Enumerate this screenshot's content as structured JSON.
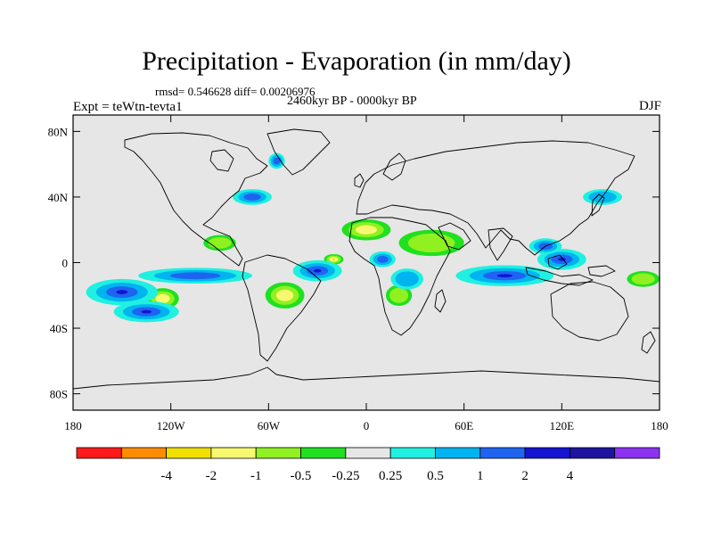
{
  "title": "Precipitation - Evaporation (in mm/day)",
  "stats_line": "rmsd= 0.546628 diff= 0.00206976",
  "period": "2460kyr BP - 0000kyr BP",
  "experiment": "Expt = teWtn-tevta1",
  "season": "DJF",
  "background_color": "#e6e6e6",
  "y_ticks": [
    "80N",
    "40N",
    "0",
    "40S",
    "80S"
  ],
  "x_ticks": [
    "180",
    "120W",
    "60W",
    "0",
    "60E",
    "120E",
    "180"
  ],
  "colorbar": {
    "colors": [
      "#ff1a1a",
      "#ff8c00",
      "#f0e000",
      "#f8f870",
      "#90f020",
      "#20e020",
      "#e6e6e6",
      "#20f0e0",
      "#00b4f0",
      "#1e64f0",
      "#1414d2",
      "#1e14a0",
      "#8c32f0"
    ],
    "labels": [
      "-4",
      "-2",
      "-1",
      "-0.5",
      "-0.25",
      "0.25",
      "0.5",
      "1",
      "2",
      "4"
    ]
  },
  "fields": {
    "positive": [
      {
        "lon": -150,
        "lat": -18,
        "rx": 22,
        "ry": 5,
        "level": 3
      },
      {
        "lon": -135,
        "lat": -30,
        "rx": 20,
        "ry": 4,
        "level": 3
      },
      {
        "lon": -105,
        "lat": -8,
        "rx": 35,
        "ry": 3,
        "level": 2
      },
      {
        "lon": -30,
        "lat": -5,
        "rx": 15,
        "ry": 4,
        "level": 3
      },
      {
        "lon": 10,
        "lat": 2,
        "rx": 8,
        "ry": 3,
        "level": 2
      },
      {
        "lon": 85,
        "lat": -8,
        "rx": 30,
        "ry": 4,
        "level": 3
      },
      {
        "lon": 120,
        "lat": 2,
        "rx": 15,
        "ry": 4,
        "level": 3
      },
      {
        "lon": 110,
        "lat": 10,
        "rx": 10,
        "ry": 3,
        "level": 2
      },
      {
        "lon": -70,
        "lat": 40,
        "rx": 12,
        "ry": 3,
        "level": 2
      },
      {
        "lon": 145,
        "lat": 40,
        "rx": 12,
        "ry": 3,
        "level": 1
      },
      {
        "lon": 25,
        "lat": -10,
        "rx": 10,
        "ry": 4,
        "level": 1
      },
      {
        "lon": -55,
        "lat": 62,
        "rx": 5,
        "ry": 3,
        "level": 2
      }
    ],
    "negative": [
      {
        "lon": -125,
        "lat": -22,
        "rx": 10,
        "ry": 4,
        "level": 2
      },
      {
        "lon": -50,
        "lat": -20,
        "rx": 12,
        "ry": 5,
        "level": 2
      },
      {
        "lon": 40,
        "lat": 12,
        "rx": 20,
        "ry": 5,
        "level": 1
      },
      {
        "lon": 0,
        "lat": 20,
        "rx": 15,
        "ry": 4,
        "level": 2
      },
      {
        "lon": -90,
        "lat": 12,
        "rx": 10,
        "ry": 3,
        "level": 1
      },
      {
        "lon": 20,
        "lat": -20,
        "rx": 8,
        "ry": 4,
        "level": 1
      },
      {
        "lon": 170,
        "lat": -10,
        "rx": 10,
        "ry": 3,
        "level": 1
      },
      {
        "lon": -20,
        "lat": 2,
        "rx": 6,
        "ry": 2,
        "level": 3
      }
    ]
  }
}
